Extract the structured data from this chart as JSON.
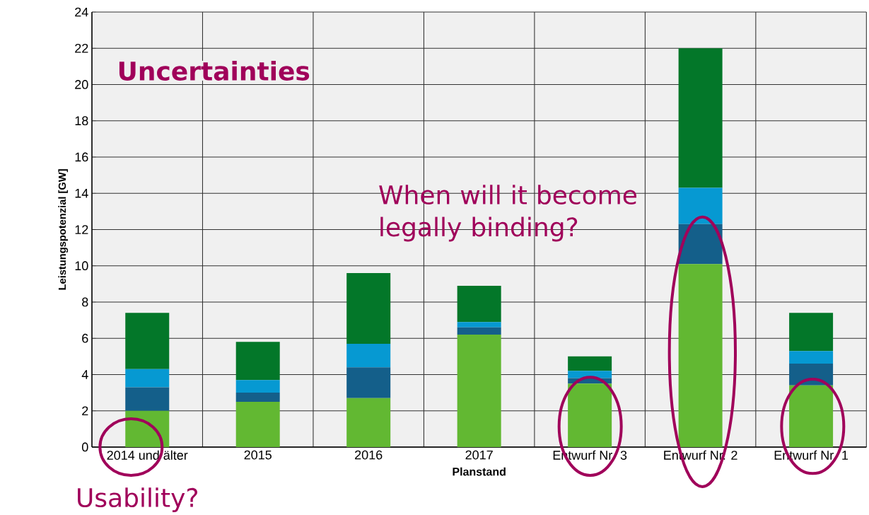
{
  "chart_data": {
    "type": "bar",
    "stacked": true,
    "xlabel": "Planstand",
    "ylabel": "Leistungspotenzial [GW]",
    "categories": [
      "2014 und älter",
      "2015",
      "2016",
      "2017",
      "Entwurf Nr. 3",
      "Entwurf Nr. 2",
      "Entwurf Nr. 1"
    ],
    "series": [
      {
        "color": "#62b832",
        "values": [
          2.0,
          2.5,
          2.7,
          6.2,
          3.5,
          10.1,
          3.4
        ]
      },
      {
        "color": "#145f8a",
        "values": [
          1.3,
          0.5,
          1.7,
          0.4,
          0.3,
          2.2,
          1.2
        ]
      },
      {
        "color": "#0699d2",
        "values": [
          1.0,
          0.7,
          1.3,
          0.3,
          0.4,
          2.0,
          0.7
        ]
      },
      {
        "color": "#037729",
        "values": [
          3.1,
          2.1,
          3.9,
          2.0,
          0.8,
          7.7,
          2.1
        ]
      }
    ],
    "ylim": [
      0,
      24
    ],
    "yticks": [
      0,
      2,
      4,
      6,
      8,
      10,
      12,
      14,
      16,
      18,
      20,
      22,
      24
    ],
    "grid": true,
    "annotations": [
      "Uncertainties",
      "When will it become legally binding?",
      "Usability?"
    ]
  }
}
